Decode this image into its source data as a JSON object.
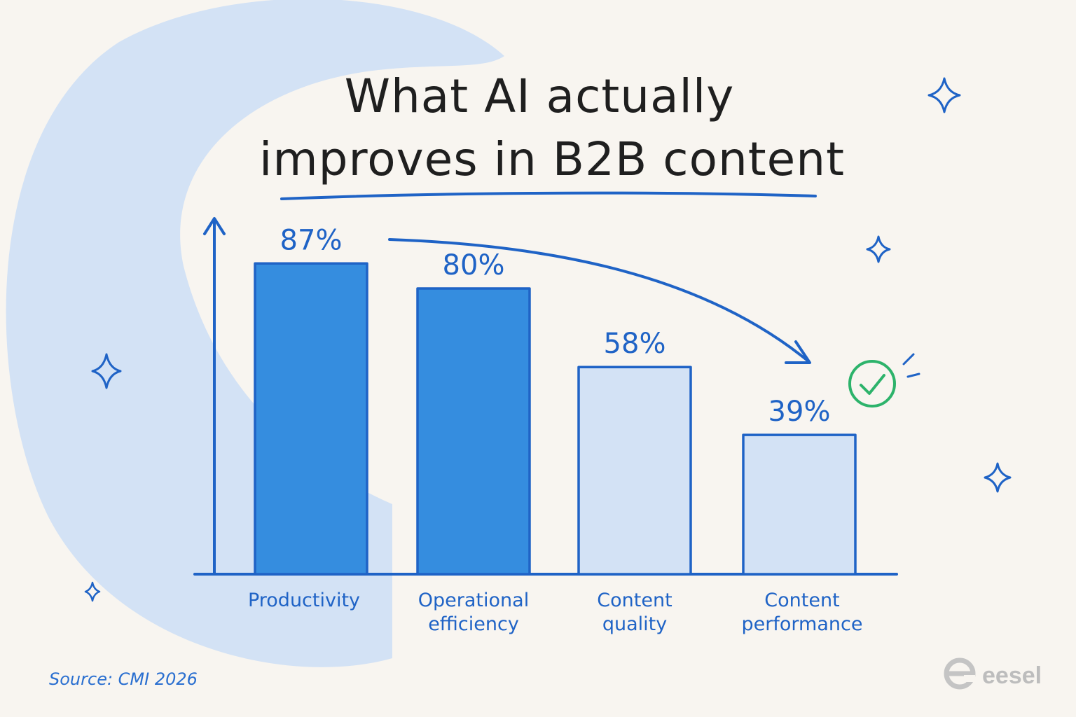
{
  "colors": {
    "background": "#f8f5f0",
    "accent_blue": "#1f63c6",
    "bar_strong": "#358ddf",
    "bar_light": "#d3e2f5",
    "decor_circle": "#d3e2f5",
    "check_green": "#2db36b",
    "title": "#1f1f1f",
    "brand_gray": "#bdbdbd"
  },
  "chart_data": {
    "type": "bar",
    "title": "What AI actually improves in B2B content",
    "title_lines": [
      "What AI actually",
      "improves in B2B content"
    ],
    "categories": [
      "Productivity",
      "Operational efficiency",
      "Content quality",
      "Content performance"
    ],
    "category_lines": [
      [
        "Productivity"
      ],
      [
        "Operational",
        "efficiency"
      ],
      [
        "Content",
        "quality"
      ],
      [
        "Content",
        "performance"
      ]
    ],
    "values": [
      87,
      80,
      58,
      39
    ],
    "value_labels": [
      "87%",
      "80%",
      "58%",
      "39%"
    ],
    "highlight": [
      "strong",
      "strong",
      "light",
      "light"
    ],
    "ylim": [
      0,
      100
    ],
    "xlabel": "",
    "ylabel": "",
    "grid": false,
    "legend": "none",
    "annotations": [
      "trend-arrow-down",
      "green-check"
    ]
  },
  "footer": {
    "source": "Source: CMI 2026",
    "brand": "eesel",
    "brand_icon": "eesel-logo-icon"
  },
  "decorations": {
    "sparkle_icon": "sparkle-icon"
  }
}
